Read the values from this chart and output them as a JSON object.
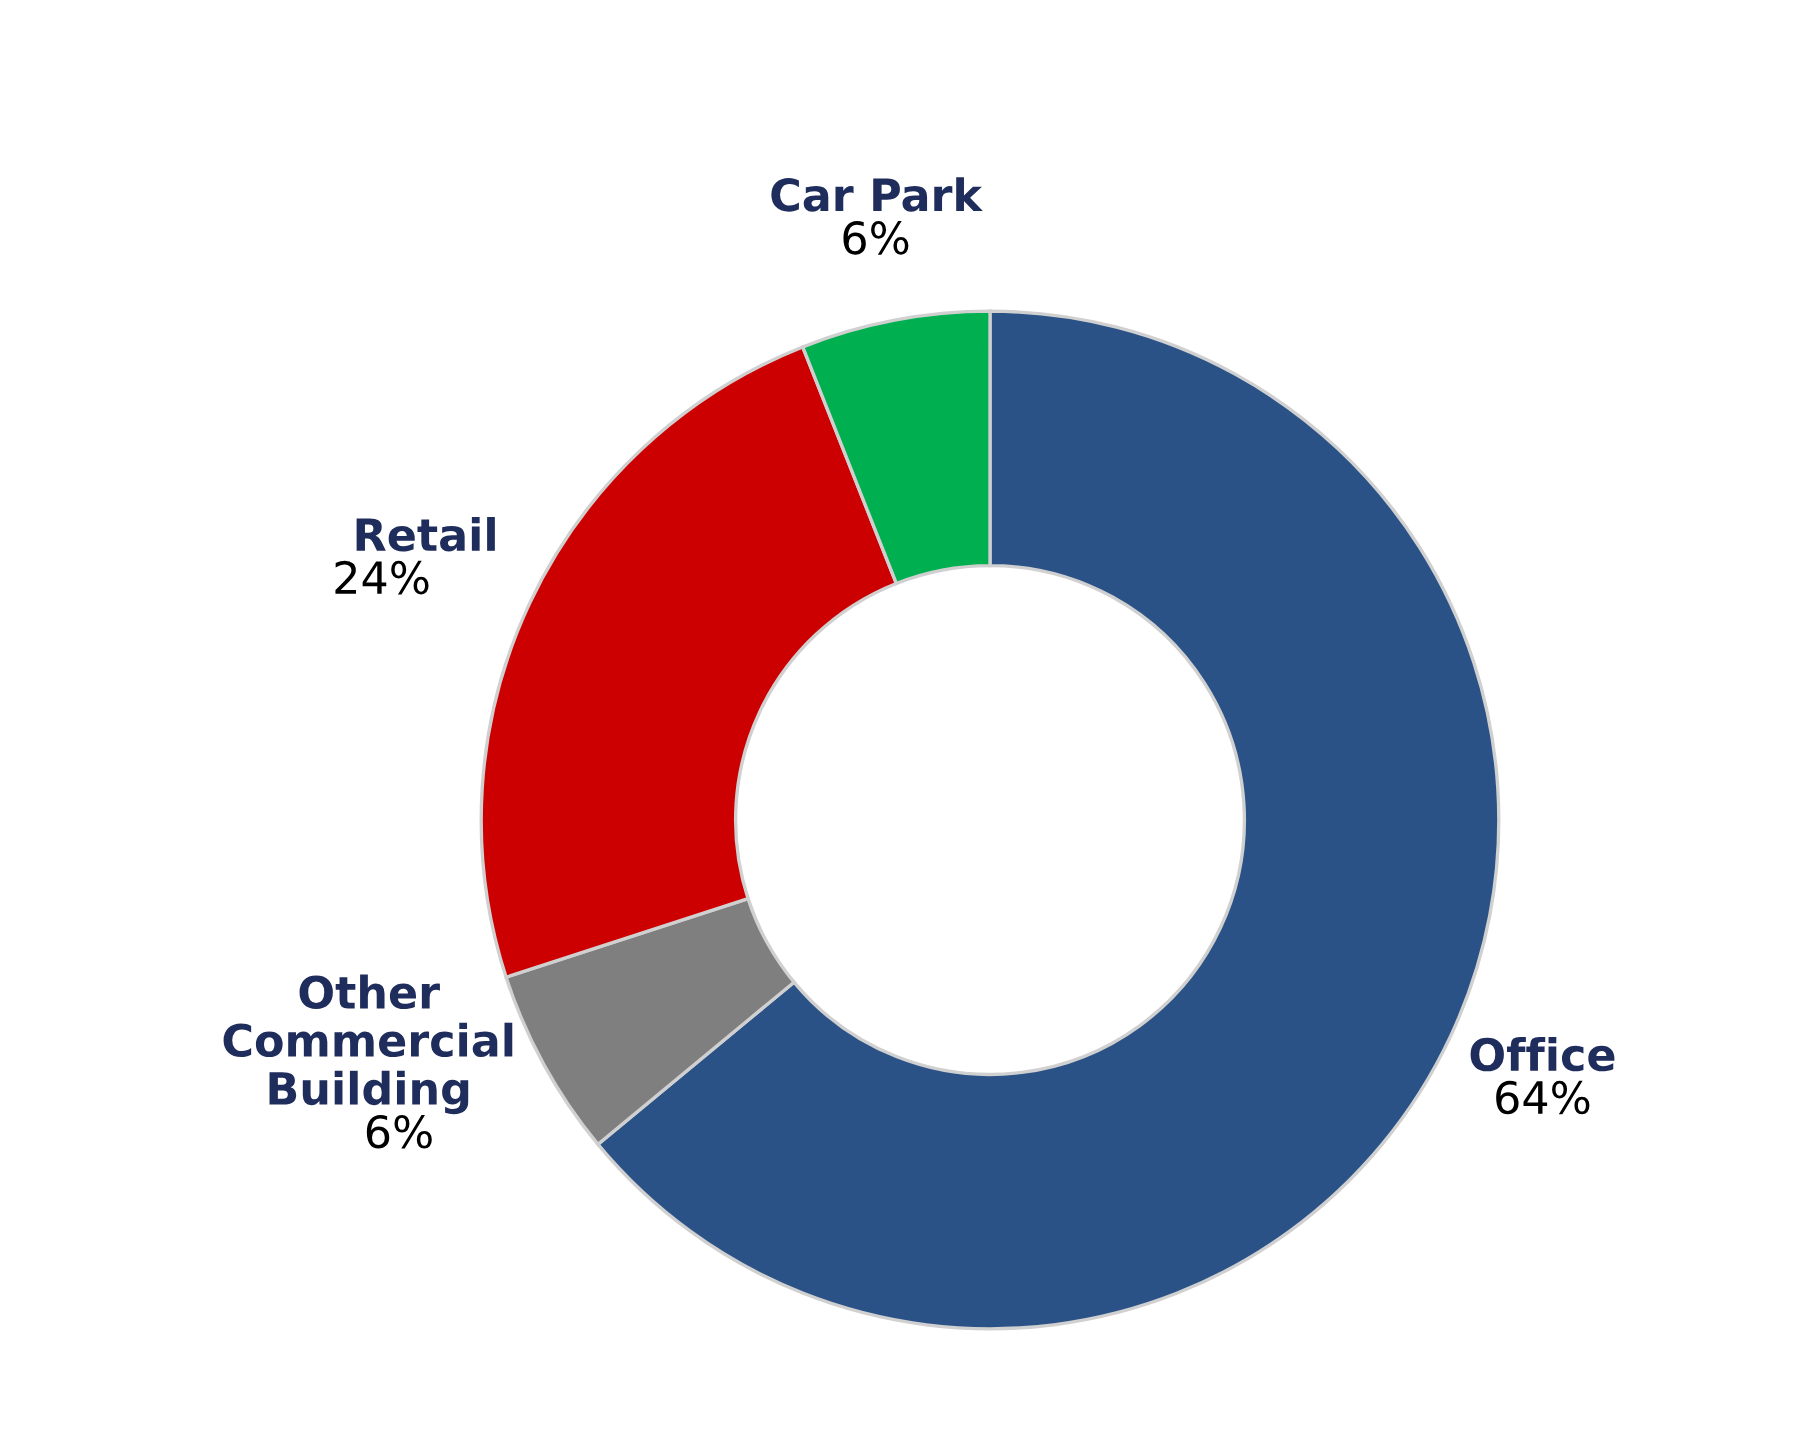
{
  "chart_data": {
    "type": "donut",
    "categories": [
      "Office",
      "Other Commercial Building",
      "Retail",
      "Car Park"
    ],
    "values": [
      64,
      6,
      24,
      6
    ],
    "value_labels": [
      "64%",
      "6%",
      "24%",
      "6%"
    ],
    "colors": [
      "#2a5287",
      "#7f7f7f",
      "#cc0000",
      "#00b050"
    ],
    "legend": false
  }
}
